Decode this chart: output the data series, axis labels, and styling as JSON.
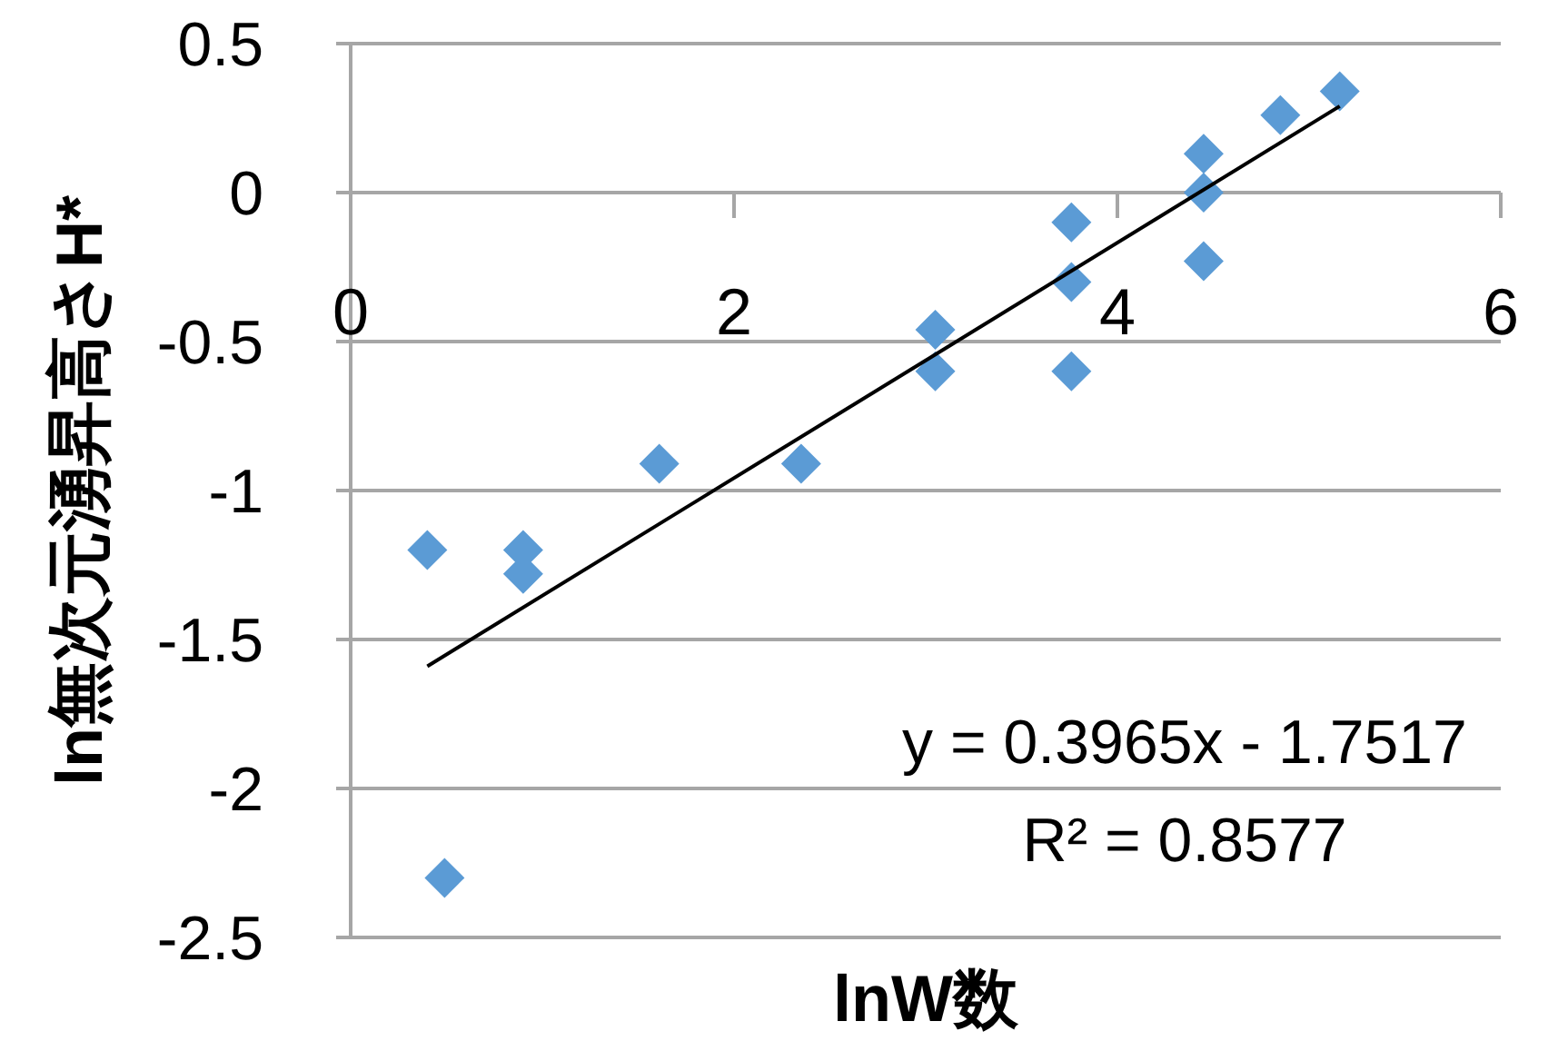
{
  "chart_data": {
    "type": "scatter",
    "xlabel": "lnW数",
    "ylabel": "ln無次元湧昇高さH*",
    "xlim": [
      0,
      6
    ],
    "xticks": [
      0,
      2,
      4,
      6
    ],
    "ylim": [
      -2.5,
      0.5
    ],
    "yticks": [
      -2.5,
      -2,
      -1.5,
      -1,
      -0.5,
      0,
      0.5
    ],
    "grid": "y",
    "marker": "diamond",
    "annotations": [
      "y = 0.3965x - 1.7517",
      "R² = 0.8577"
    ],
    "series": [
      {
        "color": "#5b9bd5",
        "x": [
          0.4,
          0.49,
          0.9,
          0.9,
          1.61,
          2.35,
          3.05,
          3.05,
          3.76,
          3.76,
          3.76,
          4.45,
          4.45,
          4.45,
          4.85,
          5.16
        ],
        "values": [
          -1.2,
          -2.3,
          -1.2,
          -1.28,
          -0.91,
          -0.91,
          -0.46,
          -0.6,
          -0.1,
          -0.3,
          -0.6,
          0.13,
          0.0,
          -0.23,
          0.26,
          0.34
        ]
      },
      {
        "type": "line",
        "color": "#000000",
        "marker": "none",
        "x": [
          0.4,
          5.16
        ],
        "values": [
          -1.59,
          0.29
        ]
      }
    ]
  }
}
